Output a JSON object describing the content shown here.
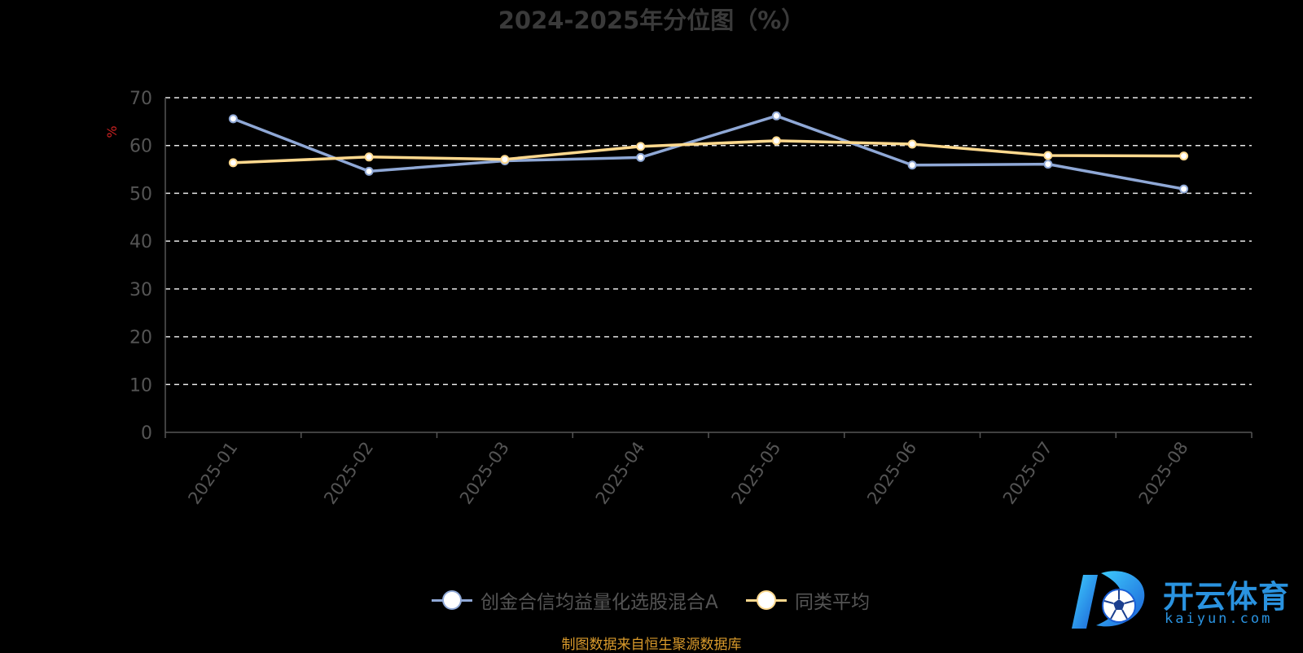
{
  "chart_data": {
    "type": "line",
    "title": "2024-2025年分位图（%）",
    "ylabel": "%",
    "xlabel": "",
    "ylim": [
      0,
      70
    ],
    "yticks": [
      0,
      10,
      20,
      30,
      40,
      50,
      60,
      70
    ],
    "grid": true,
    "legend_position": "bottom",
    "categories": [
      "2025-01",
      "2025-02",
      "2025-03",
      "2025-04",
      "2025-05",
      "2025-06",
      "2025-07",
      "2025-08"
    ],
    "series": [
      {
        "name": "创金合信均益量化选股混合A",
        "color": "#8fa8d6",
        "values": [
          65.6,
          54.6,
          56.8,
          57.5,
          66.2,
          55.9,
          56.1,
          50.9
        ]
      },
      {
        "name": "同类平均",
        "color": "#ffd98e",
        "values": [
          56.4,
          57.6,
          57.1,
          59.8,
          61.0,
          60.3,
          57.9,
          57.8
        ]
      }
    ],
    "source_note": "制图数据来自恒生聚源数据库"
  },
  "watermark": {
    "title": "开云体育",
    "subtitle": "kaiyun.com"
  }
}
